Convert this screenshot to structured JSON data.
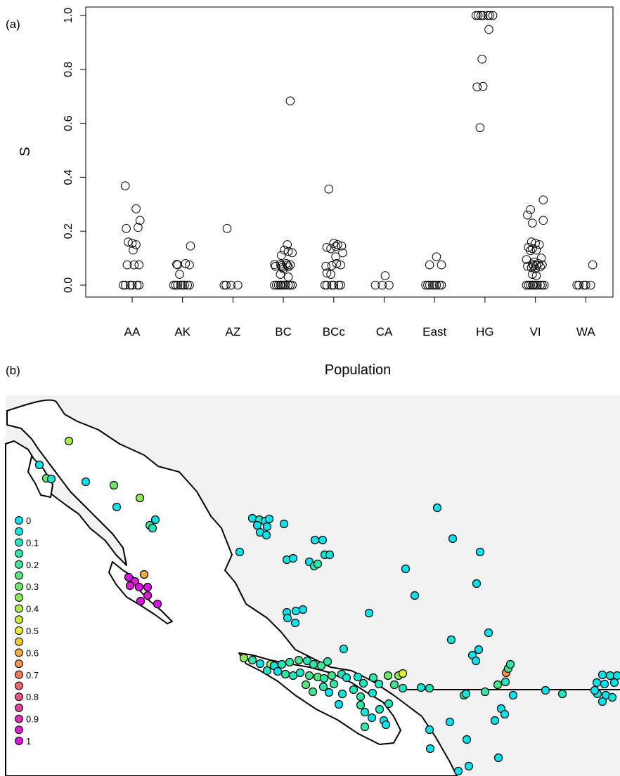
{
  "chart_data": [
    {
      "type": "scatter",
      "panel_label": "(a)",
      "xlabel": "Population",
      "ylabel": "S",
      "ylim": [
        0,
        1
      ],
      "yticks": [
        "0.0",
        "0.2",
        "0.4",
        "0.6",
        "0.8",
        "1.0"
      ],
      "grid": false,
      "categories": [
        "AA",
        "AK",
        "AZ",
        "BC",
        "BCc",
        "CA",
        "East",
        "HG",
        "VI",
        "WA"
      ],
      "points": [
        [
          "AA",
          0.368
        ],
        [
          "AA",
          0.283
        ],
        [
          "AA",
          0.24
        ],
        [
          "AA",
          0.214
        ],
        [
          "AA",
          0.21
        ],
        [
          "AA",
          0.16
        ],
        [
          "AA",
          0.155
        ],
        [
          "AA",
          0.15
        ],
        [
          "AA",
          0.13
        ],
        [
          "AA",
          0.075
        ],
        [
          "AA",
          0.075
        ],
        [
          "AA",
          0.075
        ],
        [
          "AA",
          0
        ],
        [
          "AA",
          0
        ],
        [
          "AA",
          0
        ],
        [
          "AA",
          0
        ],
        [
          "AA",
          0
        ],
        [
          "AA",
          0
        ],
        [
          "AK",
          0.145
        ],
        [
          "AK",
          0.08
        ],
        [
          "AK",
          0.077
        ],
        [
          "AK",
          0.075
        ],
        [
          "AK",
          0.075
        ],
        [
          "AK",
          0.04
        ],
        [
          "AK",
          0
        ],
        [
          "AK",
          0
        ],
        [
          "AK",
          0
        ],
        [
          "AK",
          0
        ],
        [
          "AK",
          0
        ],
        [
          "AK",
          0
        ],
        [
          "AK",
          0
        ],
        [
          "AK",
          0
        ],
        [
          "AZ",
          0.21
        ],
        [
          "AZ",
          0
        ],
        [
          "AZ",
          0
        ],
        [
          "AZ",
          0
        ],
        [
          "AZ",
          0
        ],
        [
          "BC",
          0.683
        ],
        [
          "BC",
          0.15
        ],
        [
          "BC",
          0.13
        ],
        [
          "BC",
          0.125
        ],
        [
          "BC",
          0.12
        ],
        [
          "BC",
          0.11
        ],
        [
          "BC",
          0.08
        ],
        [
          "BC",
          0.078
        ],
        [
          "BC",
          0.076
        ],
        [
          "BC",
          0.075
        ],
        [
          "BC",
          0.074
        ],
        [
          "BC",
          0.072
        ],
        [
          "BC",
          0.07
        ],
        [
          "BC",
          0.068
        ],
        [
          "BC",
          0.066
        ],
        [
          "BC",
          0.06
        ],
        [
          "BC",
          0.04
        ],
        [
          "BC",
          0.03
        ],
        [
          "BC",
          0
        ],
        [
          "BC",
          0
        ],
        [
          "BC",
          0
        ],
        [
          "BC",
          0
        ],
        [
          "BC",
          0
        ],
        [
          "BC",
          0
        ],
        [
          "BC",
          0
        ],
        [
          "BC",
          0
        ],
        [
          "BC",
          0
        ],
        [
          "BC",
          0
        ],
        [
          "BCc",
          0.356
        ],
        [
          "BCc",
          0.155
        ],
        [
          "BCc",
          0.15
        ],
        [
          "BCc",
          0.145
        ],
        [
          "BCc",
          0.143
        ],
        [
          "BCc",
          0.14
        ],
        [
          "BCc",
          0.135
        ],
        [
          "BCc",
          0.12
        ],
        [
          "BCc",
          0.105
        ],
        [
          "BCc",
          0.08
        ],
        [
          "BCc",
          0.075
        ],
        [
          "BCc",
          0.072
        ],
        [
          "BCc",
          0.07
        ],
        [
          "BCc",
          0.045
        ],
        [
          "BCc",
          0.04
        ],
        [
          "BCc",
          0
        ],
        [
          "BCc",
          0
        ],
        [
          "BCc",
          0
        ],
        [
          "BCc",
          0
        ],
        [
          "BCc",
          0
        ],
        [
          "BCc",
          0
        ],
        [
          "CA",
          0.035
        ],
        [
          "CA",
          0
        ],
        [
          "CA",
          0
        ],
        [
          "CA",
          0
        ],
        [
          "East",
          0.105
        ],
        [
          "East",
          0.075
        ],
        [
          "East",
          0.075
        ],
        [
          "East",
          0
        ],
        [
          "East",
          0
        ],
        [
          "East",
          0
        ],
        [
          "East",
          0
        ],
        [
          "East",
          0
        ],
        [
          "East",
          0
        ],
        [
          "East",
          0
        ],
        [
          "East",
          0
        ],
        [
          "HG",
          1.0
        ],
        [
          "HG",
          1.0
        ],
        [
          "HG",
          1.0
        ],
        [
          "HG",
          1.0
        ],
        [
          "HG",
          1.0
        ],
        [
          "HG",
          1.0
        ],
        [
          "HG",
          1.0
        ],
        [
          "HG",
          0.948
        ],
        [
          "HG",
          0.838
        ],
        [
          "HG",
          0.737
        ],
        [
          "HG",
          0.735
        ],
        [
          "HG",
          0.584
        ],
        [
          "VI",
          0.316
        ],
        [
          "VI",
          0.28
        ],
        [
          "VI",
          0.26
        ],
        [
          "VI",
          0.24
        ],
        [
          "VI",
          0.23
        ],
        [
          "VI",
          0.16
        ],
        [
          "VI",
          0.155
        ],
        [
          "VI",
          0.15
        ],
        [
          "VI",
          0.14
        ],
        [
          "VI",
          0.135
        ],
        [
          "VI",
          0.13
        ],
        [
          "VI",
          0.128
        ],
        [
          "VI",
          0.1
        ],
        [
          "VI",
          0.095
        ],
        [
          "VI",
          0.085
        ],
        [
          "VI",
          0.08
        ],
        [
          "VI",
          0.078
        ],
        [
          "VI",
          0.075
        ],
        [
          "VI",
          0.073
        ],
        [
          "VI",
          0.072
        ],
        [
          "VI",
          0.07
        ],
        [
          "VI",
          0.068
        ],
        [
          "VI",
          0.065
        ],
        [
          "VI",
          0.06
        ],
        [
          "VI",
          0.04
        ],
        [
          "VI",
          0.035
        ],
        [
          "VI",
          0
        ],
        [
          "VI",
          0
        ],
        [
          "VI",
          0
        ],
        [
          "VI",
          0
        ],
        [
          "VI",
          0
        ],
        [
          "VI",
          0
        ],
        [
          "VI",
          0
        ],
        [
          "VI",
          0
        ],
        [
          "VI",
          0
        ],
        [
          "VI",
          0
        ],
        [
          "WA",
          0.075
        ],
        [
          "WA",
          0
        ],
        [
          "WA",
          0
        ],
        [
          "WA",
          0
        ],
        [
          "WA",
          0
        ],
        [
          "WA",
          0
        ]
      ]
    },
    {
      "type": "scatter",
      "panel_label": "(b)",
      "color_scale": {
        "labels": [
          "0",
          "0.1",
          "0.2",
          "0.3",
          "0.4",
          "0.5",
          "0.6",
          "0.7",
          "0.8",
          "0.9",
          "1"
        ],
        "steps": [
          0,
          0.05,
          0.1,
          0.15,
          0.2,
          0.25,
          0.3,
          0.35,
          0.4,
          0.45,
          0.5,
          0.55,
          0.6,
          0.65,
          0.7,
          0.75,
          0.8,
          0.85,
          0.9,
          0.95,
          1.0
        ],
        "colors": [
          "#00e5ee",
          "#0ee8d8",
          "#1de8c0",
          "#2de8a8",
          "#3ee890",
          "#50e878",
          "#68ea62",
          "#88ec50",
          "#a8ee40",
          "#c8ee30",
          "#eaec20",
          "#f0cc28",
          "#f2ae36",
          "#f49446",
          "#f37a5a",
          "#f06470",
          "#ec5088",
          "#e83ea0",
          "#e42cba",
          "#e01cd2",
          "#dc12e6"
        ]
      },
      "map_background": "#f2f2f2"
    }
  ]
}
